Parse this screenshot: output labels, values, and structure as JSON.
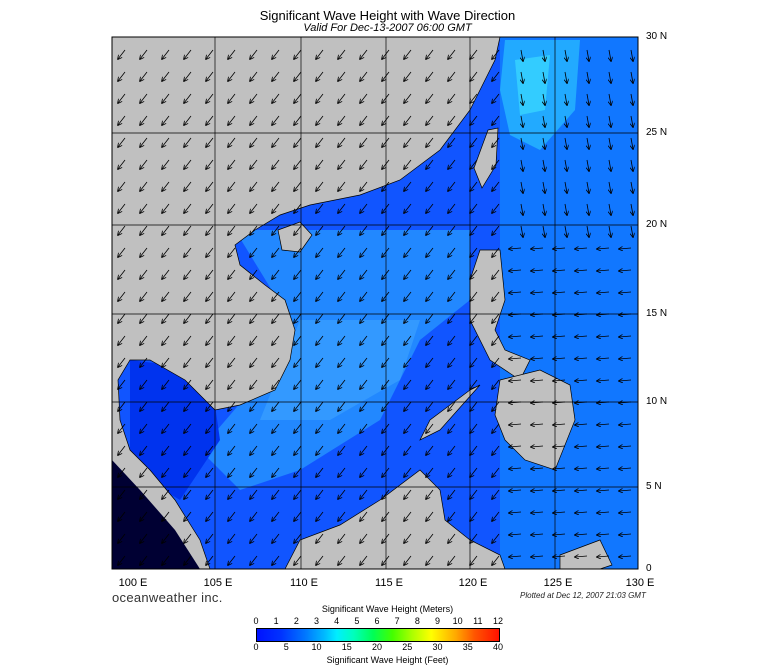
{
  "title": "Significant Wave Height with Wave Direction",
  "subtitle": "Valid For Dec-13-2007 06:00 GMT",
  "brand": "oceanweather inc.",
  "plotted": "Plotted at Dec 12, 2007 21:03 GMT",
  "lon_labels": [
    "100 E",
    "105 E",
    "110 E",
    "115 E",
    "120 E",
    "125 E",
    "130 E"
  ],
  "lat_labels": [
    "30 N",
    "25 N",
    "20 N",
    "15 N",
    "10 N",
    "5 N",
    "0"
  ],
  "colorbar": {
    "title_meters": "Significant Wave Height (Meters)",
    "title_feet": "Significant Wave Height (Feet)",
    "meters_ticks": [
      "0",
      "1",
      "2",
      "3",
      "4",
      "5",
      "6",
      "7",
      "8",
      "9",
      "10",
      "11",
      "12"
    ],
    "feet_ticks": [
      "0",
      "5",
      "10",
      "15",
      "20",
      "25",
      "30",
      "35",
      "40"
    ]
  },
  "colors": {
    "land": "#c0c0c0",
    "sea_deep": "#0033ff",
    "sea_mid": "#1166ff",
    "sea_light": "#2299ff",
    "sea_peak": "#00ccff"
  }
}
